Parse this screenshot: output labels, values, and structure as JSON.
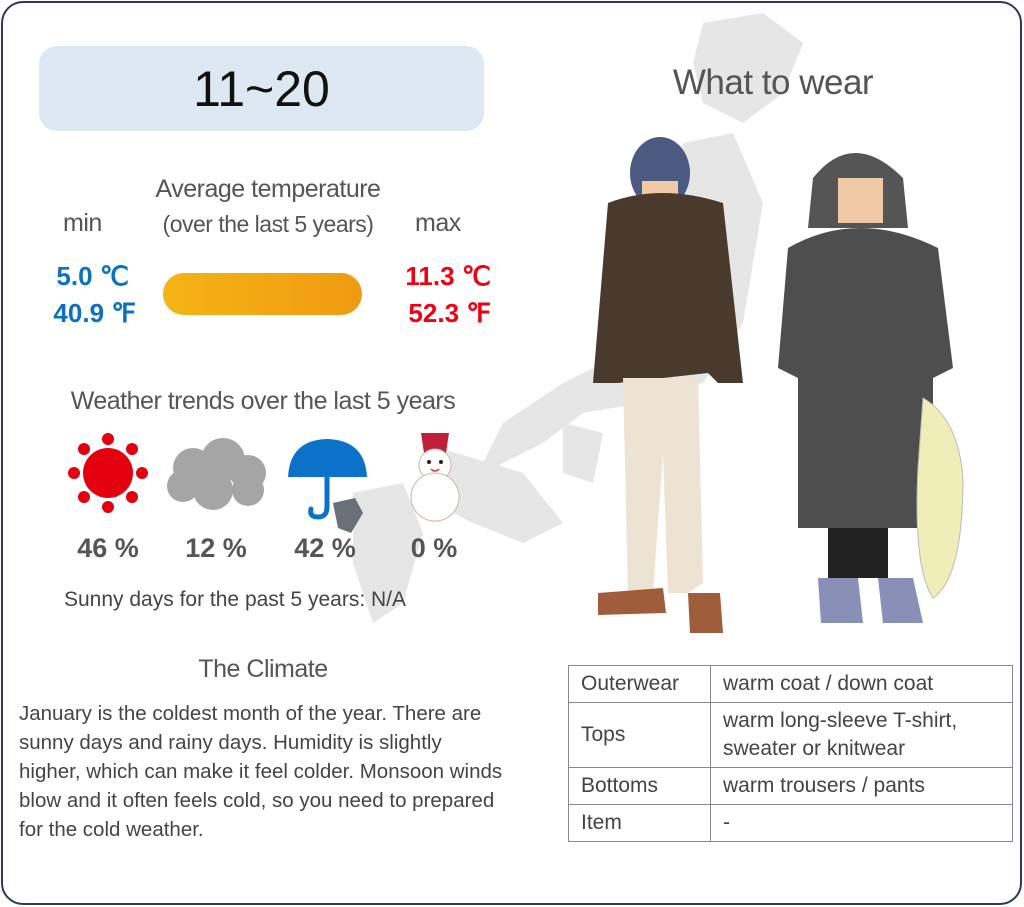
{
  "period": "11~20",
  "temperature": {
    "heading_line1": "Average temperature",
    "heading_line2": "(over the last 5 years)",
    "min_label": "min",
    "max_label": "max",
    "min_c": "5.0 ℃",
    "min_f": "40.9 ℉",
    "max_c": "11.3 ℃",
    "max_f": "52.3 ℉",
    "colors": {
      "min": "#0a70c0",
      "max": "#f00010",
      "bar_start": "#f4b414",
      "bar_end": "#f09a12"
    }
  },
  "weather": {
    "heading": "Weather trends over the last 5 years",
    "items": [
      {
        "icon": "sun-icon",
        "percent": "46 %"
      },
      {
        "icon": "cloud-icon",
        "percent": "12 %"
      },
      {
        "icon": "umbrella-icon",
        "percent": "42 %"
      },
      {
        "icon": "snowman-icon",
        "percent": "0 %"
      }
    ],
    "sunny_days": "Sunny days for the past 5 years: N/A"
  },
  "climate": {
    "heading": "The Climate",
    "text": "January is the coldest month of the year. There are sunny days and rainy days. Humidity is slightly higher, which can make it feel colder. Monsoon winds blow and it often feels cold, so you need to prepared for the cold weather."
  },
  "wear": {
    "heading": "What to wear",
    "rows": [
      {
        "label": "Outerwear",
        "value": "warm coat / down coat"
      },
      {
        "label": "Tops",
        "value": "warm long-sleeve T-shirt, sweater or knitwear"
      },
      {
        "label": "Bottoms",
        "value": "warm trousers / pants"
      },
      {
        "label": "Item",
        "value": "-"
      }
    ]
  }
}
